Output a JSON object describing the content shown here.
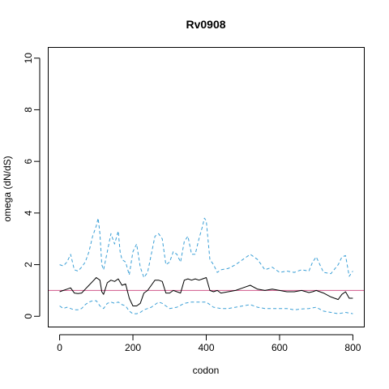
{
  "chart_data": {
    "type": "line",
    "title": "Rv0908",
    "xlabel": "codon",
    "ylabel": "omega (dN/dS)",
    "xlim": [
      -30,
      830
    ],
    "ylim": [
      -0.4,
      10.4
    ],
    "x_ticks": [
      0,
      200,
      400,
      600,
      800
    ],
    "y_ticks": [
      0,
      2,
      4,
      6,
      8,
      10
    ],
    "grid": false,
    "reference_line": {
      "y": 1,
      "color": "#d05a8c"
    },
    "series": [
      {
        "role": "upper",
        "color": "#3a9fd6",
        "style": "dashed",
        "x": [
          0,
          10,
          20,
          30,
          40,
          50,
          60,
          70,
          80,
          90,
          100,
          105,
          110,
          115,
          120,
          130,
          140,
          150,
          160,
          165,
          170,
          180,
          190,
          200,
          210,
          220,
          230,
          240,
          250,
          260,
          270,
          280,
          290,
          300,
          310,
          320,
          330,
          340,
          350,
          360,
          370,
          380,
          390,
          395,
          400,
          410,
          420,
          430,
          440,
          460,
          480,
          500,
          520,
          540,
          560,
          580,
          600,
          620,
          640,
          660,
          680,
          690,
          700,
          720,
          740,
          760,
          770,
          780,
          790,
          800
        ],
        "y": [
          2.0,
          1.95,
          2.1,
          2.4,
          1.8,
          1.75,
          1.9,
          2.1,
          2.5,
          3.1,
          3.5,
          3.8,
          3.2,
          2.0,
          1.8,
          2.5,
          3.2,
          2.8,
          3.3,
          2.5,
          2.2,
          2.1,
          1.6,
          2.5,
          2.8,
          1.9,
          1.5,
          1.7,
          2.4,
          3.1,
          3.2,
          3.0,
          2.0,
          2.1,
          2.5,
          2.4,
          2.1,
          2.9,
          3.1,
          2.4,
          2.4,
          3.0,
          3.5,
          3.8,
          3.7,
          2.2,
          2.0,
          1.7,
          1.8,
          1.85,
          2.0,
          2.2,
          2.4,
          2.2,
          1.8,
          1.9,
          1.7,
          1.75,
          1.7,
          1.8,
          1.75,
          2.1,
          2.3,
          1.7,
          1.65,
          2.0,
          2.3,
          2.35,
          1.55,
          1.75
        ]
      },
      {
        "role": "estimate",
        "color": "#000000",
        "style": "solid",
        "x": [
          0,
          10,
          20,
          30,
          40,
          50,
          60,
          70,
          80,
          90,
          100,
          110,
          115,
          120,
          130,
          140,
          150,
          160,
          170,
          180,
          190,
          200,
          210,
          220,
          230,
          240,
          250,
          260,
          270,
          280,
          290,
          300,
          310,
          320,
          330,
          340,
          350,
          360,
          370,
          380,
          390,
          400,
          410,
          420,
          430,
          440,
          460,
          480,
          500,
          520,
          540,
          560,
          580,
          600,
          620,
          640,
          660,
          680,
          690,
          700,
          720,
          740,
          760,
          770,
          780,
          790,
          800
        ],
        "y": [
          0.95,
          1.0,
          1.05,
          1.1,
          0.9,
          0.88,
          0.9,
          1.05,
          1.2,
          1.35,
          1.5,
          1.4,
          0.95,
          0.85,
          1.3,
          1.4,
          1.35,
          1.45,
          1.2,
          1.25,
          0.7,
          0.4,
          0.4,
          0.5,
          0.9,
          1.0,
          1.2,
          1.4,
          1.4,
          1.35,
          0.9,
          0.9,
          1.0,
          0.95,
          0.9,
          1.4,
          1.45,
          1.4,
          1.45,
          1.4,
          1.45,
          1.5,
          1.0,
          0.95,
          1.0,
          0.9,
          0.95,
          1.0,
          1.1,
          1.2,
          1.05,
          1.0,
          1.05,
          1.0,
          0.95,
          0.95,
          1.0,
          0.92,
          0.95,
          1.0,
          0.9,
          0.75,
          0.65,
          0.85,
          0.95,
          0.7,
          0.7
        ]
      },
      {
        "role": "lower",
        "color": "#3a9fd6",
        "style": "dashed",
        "x": [
          0,
          10,
          20,
          30,
          40,
          50,
          60,
          70,
          80,
          90,
          100,
          110,
          120,
          130,
          140,
          150,
          160,
          170,
          180,
          190,
          200,
          210,
          220,
          230,
          240,
          250,
          260,
          270,
          280,
          290,
          300,
          320,
          340,
          360,
          380,
          400,
          420,
          440,
          460,
          480,
          500,
          520,
          540,
          560,
          580,
          600,
          620,
          640,
          660,
          680,
          700,
          720,
          740,
          760,
          780,
          800
        ],
        "y": [
          0.4,
          0.3,
          0.35,
          0.3,
          0.25,
          0.25,
          0.3,
          0.45,
          0.55,
          0.6,
          0.6,
          0.4,
          0.3,
          0.5,
          0.55,
          0.5,
          0.55,
          0.45,
          0.4,
          0.2,
          0.1,
          0.1,
          0.15,
          0.25,
          0.3,
          0.35,
          0.45,
          0.55,
          0.5,
          0.4,
          0.3,
          0.35,
          0.5,
          0.55,
          0.55,
          0.55,
          0.35,
          0.3,
          0.3,
          0.35,
          0.4,
          0.45,
          0.35,
          0.3,
          0.3,
          0.3,
          0.3,
          0.25,
          0.28,
          0.3,
          0.35,
          0.2,
          0.15,
          0.1,
          0.15,
          0.1
        ]
      }
    ]
  }
}
